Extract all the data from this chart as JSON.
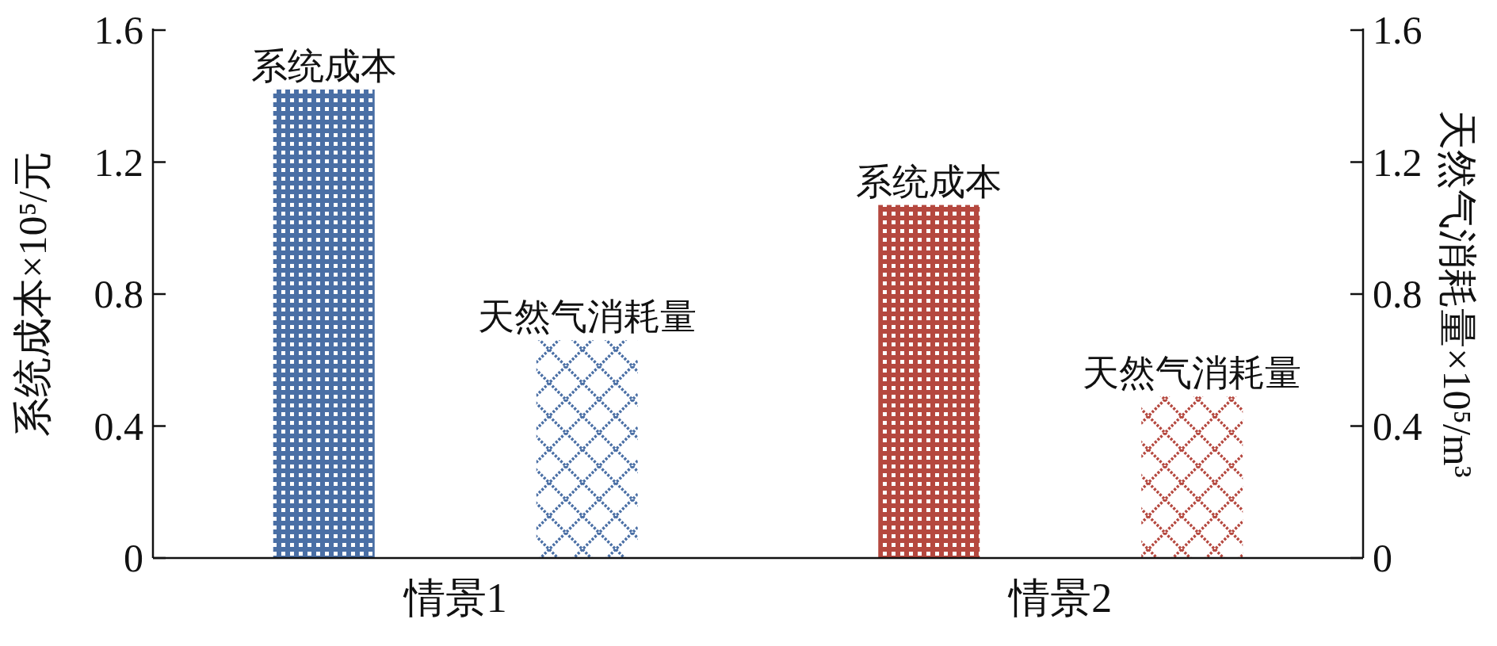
{
  "chart_data": {
    "type": "bar",
    "categories": [
      "情景1",
      "情景2"
    ],
    "ylabel": "系统成本×10⁵/元",
    "y2label": "天然气消耗量×10⁵/m³",
    "ylim": [
      0,
      1.6
    ],
    "yticks": [
      0,
      0.4,
      0.8,
      1.2,
      1.6
    ],
    "y2lim": [
      0,
      1.6
    ],
    "y2ticks": [
      0,
      0.4,
      0.8,
      1.2,
      1.6
    ],
    "series": [
      {
        "name": "系统成本",
        "colors": [
          "#4a6fa5",
          "#b5483f"
        ],
        "values": [
          1.42,
          1.07
        ]
      },
      {
        "name": "天然气消耗量",
        "axis": "y2",
        "colors": [
          "#4a6fa5",
          "#b5483f"
        ],
        "values": [
          0.66,
          0.49
        ]
      }
    ]
  }
}
